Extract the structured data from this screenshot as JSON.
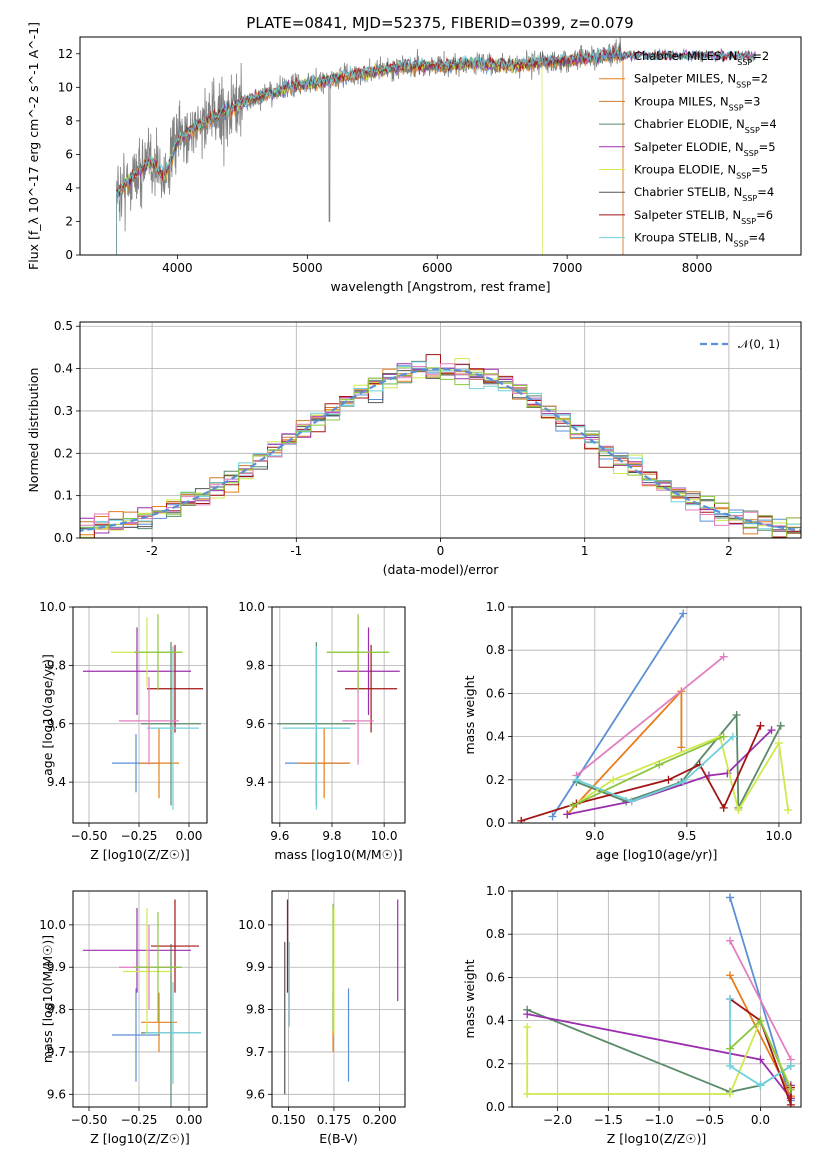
{
  "figure_title": "PLATE=0841, MJD=52375, FIBERID=0399, z=0.079",
  "model_colors": [
    "#5b7ec9",
    "#e07b1a",
    "#b87a30",
    "#5b7d6e",
    "#8e2fa9",
    "#d9e243",
    "#333333",
    "#a11a1a",
    "#6fc8d8"
  ],
  "models_in_scatter_colors": [
    "#5b8fd6",
    "#e87d1c",
    "#cd7b28",
    "#5a8a6a",
    "#9b2fad",
    "#cfe84d",
    "#555555",
    "#a31515",
    "#6fd0dc",
    "#e27fc0",
    "#8bc53f"
  ],
  "chart_data": [
    {
      "id": "spectrum",
      "type": "line",
      "title": "PLATE=0841, MJD=52375, FIBERID=0399, z=0.079",
      "xlabel": "wavelength [Angstrom, rest frame]",
      "ylabel": "Flux [f_λ 10^-17 erg cm^-2 s^-1 A^-1]",
      "xlim": [
        3250,
        8800
      ],
      "ylim": [
        0,
        13
      ],
      "xticks": [
        4000,
        5000,
        6000,
        7000,
        8000
      ],
      "yticks": [
        0,
        2,
        4,
        6,
        8,
        10,
        12
      ],
      "legend_position": "right",
      "series": [
        {
          "name": "Chabrier MILES, N_SSP=2",
          "color": "#5b8fd6"
        },
        {
          "name": "Salpeter MILES, N_SSP=2",
          "color": "#e87d1c"
        },
        {
          "name": "Kroupa MILES, N_SSP=3",
          "color": "#cd7b28"
        },
        {
          "name": "Chabrier ELODIE, N_SSP=4",
          "color": "#5a8a6a"
        },
        {
          "name": "Salpeter ELODIE, N_SSP=5",
          "color": "#9b2fad"
        },
        {
          "name": "Kroupa ELODIE, N_SSP=5",
          "color": "#cfe84d"
        },
        {
          "name": "Chabrier STELIB, N_SSP=4",
          "color": "#555555"
        },
        {
          "name": "Salpeter STELIB, N_SSP=6",
          "color": "#a31515"
        },
        {
          "name": "Kroupa STELIB, N_SSP=4",
          "color": "#6fd0dc"
        }
      ],
      "continuum": {
        "x": [
          3530,
          3600,
          3700,
          3800,
          3900,
          4000,
          4100,
          4200,
          4300,
          4400,
          4500,
          4700,
          4900,
          5100,
          5300,
          5500,
          5700,
          6000,
          6300,
          6600,
          6800,
          7000,
          7200,
          7420
        ],
        "y": [
          3.6,
          4.2,
          5.0,
          5.6,
          4.6,
          6.8,
          7.4,
          7.9,
          8.3,
          8.6,
          9.1,
          9.6,
          10.1,
          10.3,
          10.7,
          10.9,
          11.2,
          11.3,
          11.4,
          11.3,
          11.5,
          11.6,
          11.8,
          12.0
        ]
      }
    },
    {
      "id": "residuals",
      "type": "line",
      "xlabel": "(data-model)/error",
      "ylabel": "Normed distribution",
      "xlim": [
        -2.5,
        2.5
      ],
      "ylim": [
        0,
        0.51
      ],
      "xticks": [
        -2,
        -1,
        0,
        1,
        2
      ],
      "yticks": [
        0.0,
        0.1,
        0.2,
        0.3,
        0.4,
        0.5
      ],
      "legend_position": "top-right",
      "series": [
        {
          "name": "𝒩(0, 1)",
          "style": "dashed",
          "color": "#5b8fd6"
        }
      ]
    },
    {
      "id": "age_vs_Z",
      "type": "scatter",
      "xlabel": "Z [log10(Z/Z☉)]",
      "ylabel": "age  [log10(age/yr)]",
      "xlim": [
        -0.58,
        0.09
      ],
      "ylim": [
        9.26,
        10.0
      ],
      "xticks": [
        -0.5,
        -0.25,
        0.0
      ],
      "xticklabels": [
        "−0.50",
        "−0.25",
        "0.00"
      ],
      "yticks": [
        9.4,
        9.6,
        9.8,
        10.0
      ],
      "points": [
        {
          "x": -0.265,
          "y": 9.465,
          "xerr": 0.12,
          "yerr": 0.1,
          "color": "#5b8fd6"
        },
        {
          "x": -0.15,
          "y": 9.465,
          "xerr": 0.1,
          "yerr": 0.12,
          "color": "#e87d1c"
        },
        {
          "x": -0.09,
          "y": 9.6,
          "xerr": 0.15,
          "yerr": 0.28,
          "color": "#5a8a6a"
        },
        {
          "x": -0.26,
          "y": 9.78,
          "xerr": 0.27,
          "yerr": 0.15,
          "color": "#9b2fad"
        },
        {
          "x": -0.21,
          "y": 9.845,
          "xerr": 0.18,
          "yerr": 0.12,
          "color": "#cfe84d"
        },
        {
          "x": -0.07,
          "y": 9.72,
          "xerr": 0.14,
          "yerr": 0.15,
          "color": "#a31515"
        },
        {
          "x": -0.08,
          "y": 9.585,
          "xerr": 0.13,
          "yerr": 0.28,
          "color": "#6fd0dc"
        },
        {
          "x": -0.2,
          "y": 9.61,
          "xerr": 0.15,
          "yerr": 0.15,
          "color": "#e27fc0"
        },
        {
          "x": -0.155,
          "y": 9.845,
          "xerr": 0.12,
          "yerr": 0.13,
          "color": "#8bc53f"
        }
      ]
    },
    {
      "id": "age_vs_mass",
      "type": "scatter",
      "xlabel": "mass [log10(M/M☉)]",
      "xlim": [
        9.57,
        10.08
      ],
      "ylim": [
        9.26,
        10.0
      ],
      "xticks": [
        9.6,
        9.8,
        10.0
      ],
      "yticks": [
        9.4,
        9.6,
        9.8,
        10.0
      ],
      "points": [
        {
          "x": 9.74,
          "y": 9.465,
          "xerr": 0.12,
          "yerr": 0.1,
          "color": "#5b8fd6"
        },
        {
          "x": 9.77,
          "y": 9.465,
          "xerr": 0.1,
          "yerr": 0.12,
          "color": "#e87d1c"
        },
        {
          "x": 9.74,
          "y": 9.6,
          "xerr": 0.15,
          "yerr": 0.28,
          "color": "#5a8a6a"
        },
        {
          "x": 9.94,
          "y": 9.78,
          "xerr": 0.12,
          "yerr": 0.15,
          "color": "#9b2fad"
        },
        {
          "x": 9.9,
          "y": 9.845,
          "xerr": 0.12,
          "yerr": 0.12,
          "color": "#cfe84d"
        },
        {
          "x": 9.95,
          "y": 9.72,
          "xerr": 0.1,
          "yerr": 0.15,
          "color": "#a31515"
        },
        {
          "x": 9.74,
          "y": 9.585,
          "xerr": 0.13,
          "yerr": 0.28,
          "color": "#6fd0dc"
        },
        {
          "x": 9.9,
          "y": 9.61,
          "xerr": 0.06,
          "yerr": 0.15,
          "color": "#e27fc0"
        },
        {
          "x": 9.9,
          "y": 9.845,
          "xerr": 0.12,
          "yerr": 0.13,
          "color": "#8bc53f"
        }
      ]
    },
    {
      "id": "mass_weight_vs_age",
      "type": "line",
      "xlabel": "age  [log10(age/yr)]",
      "ylabel": "mass weight",
      "xlim": [
        8.55,
        10.12
      ],
      "ylim": [
        0,
        1.0
      ],
      "xticks": [
        9.0,
        9.5,
        10.0
      ],
      "yticks": [
        0.0,
        0.2,
        0.4,
        0.6,
        0.8,
        1.0
      ],
      "series": [
        {
          "color": "#5b8fd6",
          "x": [
            8.77,
            9.48
          ],
          "y": [
            0.03,
            0.97
          ]
        },
        {
          "color": "#e87d1c",
          "x": [
            8.85,
            9.47,
            9.47
          ],
          "y": [
            0.04,
            0.61,
            0.35
          ]
        },
        {
          "color": "#e27fc0",
          "x": [
            8.9,
            9.7
          ],
          "y": [
            0.22,
            0.77
          ]
        },
        {
          "color": "#5a8a6a",
          "x": [
            8.9,
            9.17,
            9.47,
            9.77,
            9.78,
            10.01
          ],
          "y": [
            0.19,
            0.1,
            0.19,
            0.5,
            0.07,
            0.45
          ]
        },
        {
          "color": "#9b2fad",
          "x": [
            8.85,
            9.2,
            9.62,
            9.72,
            9.96
          ],
          "y": [
            0.04,
            0.1,
            0.22,
            0.23,
            0.43
          ]
        },
        {
          "color": "#cfe84d",
          "x": [
            8.9,
            9.1,
            9.68,
            9.78,
            10.0,
            10.05
          ],
          "y": [
            0.09,
            0.2,
            0.4,
            0.06,
            0.37,
            0.06
          ]
        },
        {
          "color": "#a31515",
          "x": [
            8.6,
            8.9,
            9.4,
            9.57,
            9.7,
            9.9
          ],
          "y": [
            0.01,
            0.09,
            0.2,
            0.27,
            0.07,
            0.45
          ]
        },
        {
          "color": "#6fd0dc",
          "x": [
            8.9,
            9.2,
            9.48,
            9.75
          ],
          "y": [
            0.2,
            0.1,
            0.19,
            0.4
          ]
        },
        {
          "color": "#8bc53f",
          "x": [
            8.88,
            9.35,
            9.7
          ],
          "y": [
            0.08,
            0.27,
            0.4
          ]
        }
      ]
    },
    {
      "id": "mass_vs_Z",
      "type": "scatter",
      "xlabel": "Z [log10(Z/Z☉)]",
      "ylabel": "mass [log10(M/M☉)]",
      "xlim": [
        -0.58,
        0.09
      ],
      "ylim": [
        9.57,
        10.08
      ],
      "xticks": [
        -0.5,
        -0.25,
        0.0
      ],
      "xticklabels": [
        "−0.50",
        "−0.25",
        "0.00"
      ],
      "yticks": [
        9.6,
        9.7,
        9.8,
        9.9,
        10.0
      ],
      "points": [
        {
          "x": -0.265,
          "y": 9.74,
          "xerr": 0.12,
          "yerr": 0.11,
          "color": "#5b8fd6"
        },
        {
          "x": -0.15,
          "y": 9.77,
          "xerr": 0.09,
          "yerr": 0.07,
          "color": "#e87d1c"
        },
        {
          "x": -0.09,
          "y": 9.745,
          "xerr": 0.15,
          "yerr": 0.21,
          "color": "#5a8a6a"
        },
        {
          "x": -0.26,
          "y": 9.94,
          "xerr": 0.27,
          "yerr": 0.1,
          "color": "#9b2fad"
        },
        {
          "x": -0.21,
          "y": 9.89,
          "xerr": 0.12,
          "yerr": 0.15,
          "color": "#cfe84d"
        },
        {
          "x": -0.07,
          "y": 9.95,
          "xerr": 0.12,
          "yerr": 0.11,
          "color": "#a31515"
        },
        {
          "x": -0.08,
          "y": 9.745,
          "xerr": 0.14,
          "yerr": 0.12,
          "color": "#6fd0dc"
        },
        {
          "x": -0.2,
          "y": 9.9,
          "xerr": 0.15,
          "yerr": 0.1,
          "color": "#e27fc0"
        },
        {
          "x": -0.155,
          "y": 9.9,
          "xerr": 0.12,
          "yerr": 0.13,
          "color": "#8bc53f"
        }
      ]
    },
    {
      "id": "mass_vs_ebv",
      "type": "scatter",
      "xlabel": "E(B-V)",
      "xlim": [
        0.141,
        0.214
      ],
      "ylim": [
        9.57,
        10.08
      ],
      "xticks": [
        0.15,
        0.175,
        0.2
      ],
      "xticklabels": [
        "0.150",
        "0.175",
        "0.200"
      ],
      "yticks": [
        9.6,
        9.7,
        9.8,
        9.9,
        10.0
      ],
      "points": [
        {
          "x": 0.183,
          "y": 9.74,
          "yerr": 0.11,
          "color": "#5b8fd6"
        },
        {
          "x": 0.1745,
          "y": 9.77,
          "yerr": 0.07,
          "color": "#e87d1c"
        },
        {
          "x": 0.1745,
          "y": 9.9,
          "yerr": 0.15,
          "color": "#8bc53f"
        },
        {
          "x": 0.148,
          "y": 9.78,
          "yerr": 0.18,
          "color": "#555555"
        },
        {
          "x": 0.21,
          "y": 9.94,
          "yerr": 0.12,
          "color": "#9b2fad"
        },
        {
          "x": 0.175,
          "y": 9.89,
          "yerr": 0.15,
          "color": "#cfe84d"
        },
        {
          "x": 0.1495,
          "y": 9.95,
          "yerr": 0.11,
          "color": "#a31515"
        },
        {
          "x": 0.1505,
          "y": 9.86,
          "yerr": 0.1,
          "color": "#6fd0dc"
        }
      ]
    },
    {
      "id": "mass_weight_vs_Z",
      "type": "line",
      "xlabel": "Z [log10(Z/Z☉)]",
      "ylabel": "mass weight",
      "xlim": [
        -2.45,
        0.4
      ],
      "ylim": [
        0,
        1.0
      ],
      "xticks": [
        -2.0,
        -1.5,
        -1.0,
        -0.5,
        0.0
      ],
      "xticklabels": [
        "−2.0",
        "−1.5",
        "−1.0",
        "−0.5",
        "0.0"
      ],
      "yticks": [
        0.0,
        0.2,
        0.4,
        0.6,
        0.8,
        1.0
      ],
      "series": [
        {
          "color": "#5b8fd6",
          "x": [
            -0.3,
            -0.3,
            0.3
          ],
          "y": [
            0.97,
            0.97,
            0.03
          ]
        },
        {
          "color": "#e87d1c",
          "x": [
            -0.3,
            0.3,
            0.3
          ],
          "y": [
            0.61,
            0.05,
            0.04
          ]
        },
        {
          "color": "#e27fc0",
          "x": [
            -0.3,
            0.3
          ],
          "y": [
            0.77,
            0.22
          ]
        },
        {
          "color": "#5a8a6a",
          "x": [
            -2.3,
            -0.3,
            0.0,
            0.3
          ],
          "y": [
            0.45,
            0.07,
            0.1,
            0.19
          ]
        },
        {
          "color": "#9b2fad",
          "x": [
            -2.3,
            0.0,
            0.3,
            0.3
          ],
          "y": [
            0.43,
            0.22,
            0.04,
            0.1
          ]
        },
        {
          "color": "#cfe84d",
          "x": [
            -2.3,
            -2.3,
            -0.3,
            0.0,
            0.3
          ],
          "y": [
            0.37,
            0.06,
            0.06,
            0.4,
            0.09
          ]
        },
        {
          "color": "#a31515",
          "x": [
            -0.3,
            0.0,
            0.3,
            0.3
          ],
          "y": [
            0.5,
            0.4,
            0.01,
            0.09
          ]
        },
        {
          "color": "#6fd0dc",
          "x": [
            -0.3,
            -0.3,
            0.0,
            0.3
          ],
          "y": [
            0.5,
            0.19,
            0.1,
            0.19
          ]
        },
        {
          "color": "#8bc53f",
          "x": [
            -0.3,
            0.0,
            0.3
          ],
          "y": [
            0.27,
            0.4,
            0.08
          ]
        }
      ]
    }
  ]
}
